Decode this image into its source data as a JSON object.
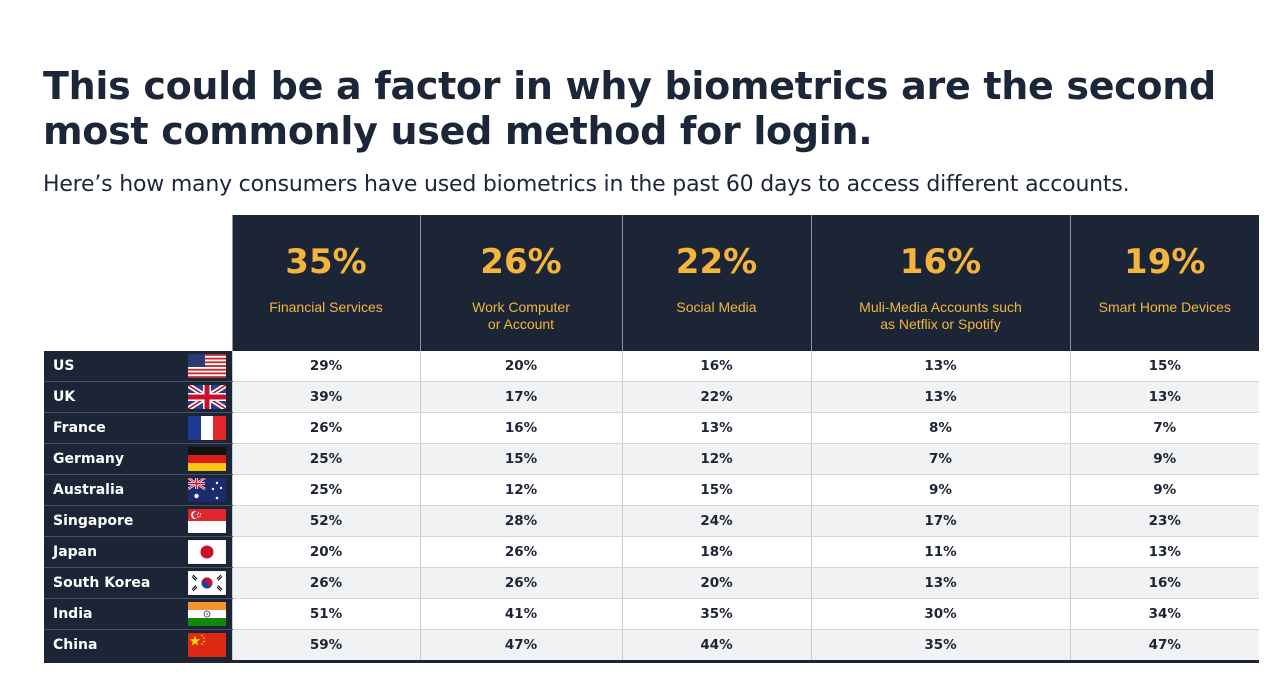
{
  "title": "This could be a factor in why biometrics are the second most commonly used method for login.",
  "subtitle": "Here’s how many consumers have used biometrics in the past 60 days to access different accounts.",
  "colors": {
    "header_bg": "#1b2536",
    "accent": "#f4b53c",
    "row_alt": "#f1f2f4"
  },
  "chart_data": {
    "type": "table",
    "title": "This could be a factor in why biometrics are the second most commonly used method for login.",
    "columns": [
      {
        "pct": "35%",
        "label": "Financial Services"
      },
      {
        "pct": "26%",
        "label": "Work Computer\nor Account"
      },
      {
        "pct": "22%",
        "label": "Social Media"
      },
      {
        "pct": "16%",
        "label": "Muli-Media Accounts such\nas Netflix or Spotify"
      },
      {
        "pct": "19%",
        "label": "Smart Home Devices"
      }
    ],
    "rows": [
      {
        "country": "US",
        "flag": "us-flag-icon",
        "values": [
          "29%",
          "20%",
          "16%",
          "13%",
          "15%"
        ]
      },
      {
        "country": "UK",
        "flag": "uk-flag-icon",
        "values": [
          "39%",
          "17%",
          "22%",
          "13%",
          "13%"
        ]
      },
      {
        "country": "France",
        "flag": "france-flag-icon",
        "values": [
          "26%",
          "16%",
          "13%",
          "8%",
          "7%"
        ]
      },
      {
        "country": "Germany",
        "flag": "germany-flag-icon",
        "values": [
          "25%",
          "15%",
          "12%",
          "7%",
          "9%"
        ]
      },
      {
        "country": "Australia",
        "flag": "australia-flag-icon",
        "values": [
          "25%",
          "12%",
          "15%",
          "9%",
          "9%"
        ]
      },
      {
        "country": "Singapore",
        "flag": "singapore-flag-icon",
        "values": [
          "52%",
          "28%",
          "24%",
          "17%",
          "23%"
        ]
      },
      {
        "country": "Japan",
        "flag": "japan-flag-icon",
        "values": [
          "20%",
          "26%",
          "18%",
          "11%",
          "13%"
        ]
      },
      {
        "country": "South Korea",
        "flag": "south-korea-flag-icon",
        "values": [
          "26%",
          "26%",
          "20%",
          "13%",
          "16%"
        ]
      },
      {
        "country": "India",
        "flag": "india-flag-icon",
        "values": [
          "51%",
          "41%",
          "35%",
          "30%",
          "34%"
        ]
      },
      {
        "country": "China",
        "flag": "china-flag-icon",
        "values": [
          "59%",
          "47%",
          "44%",
          "35%",
          "47%"
        ]
      }
    ]
  }
}
